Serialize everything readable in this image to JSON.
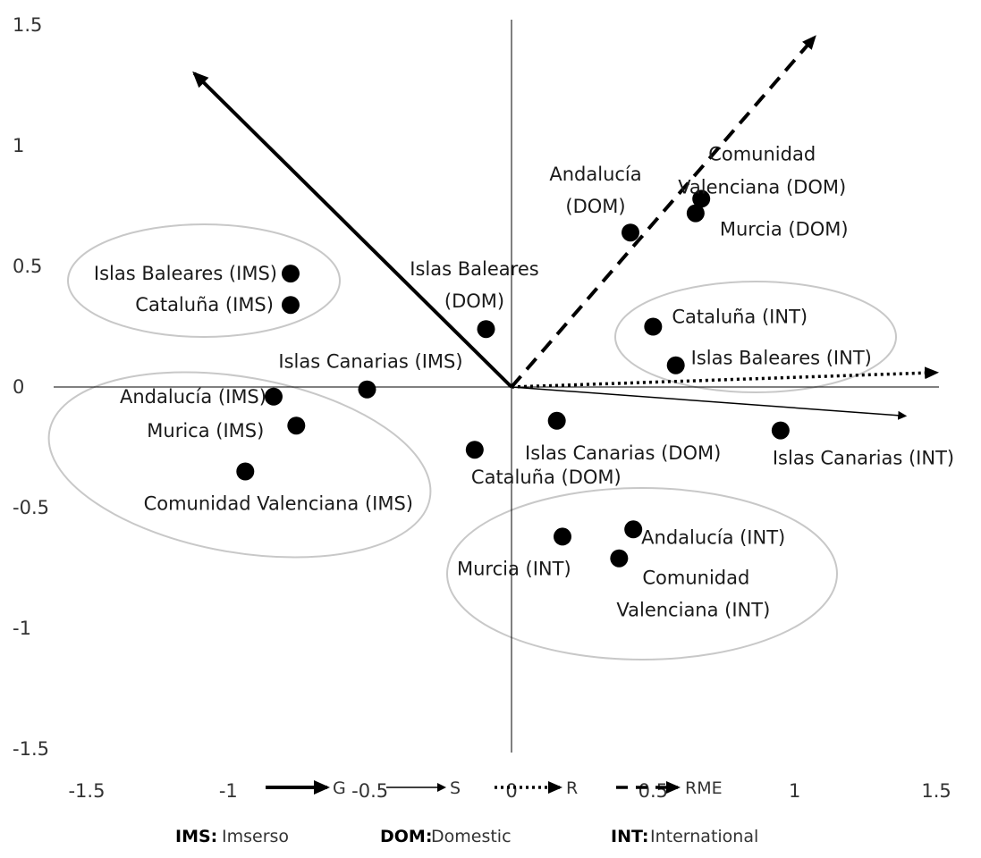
{
  "chart_data": {
    "type": "scatter",
    "xlim": [
      -1.5,
      1.5
    ],
    "ylim": [
      -1.5,
      1.5
    ],
    "x_ticks": [
      "-1.5",
      "-1",
      "-0.5",
      "0",
      "0.5",
      "1",
      "1.5"
    ],
    "y_ticks": [
      "1.5",
      "1",
      "0.5",
      "0",
      "-0.5",
      "-1",
      "-1.5"
    ],
    "grid": false,
    "points": [
      {
        "label": "Islas Baleares (IMS)",
        "x": -0.78,
        "y": 0.47
      },
      {
        "label": "Cataluña (IMS)",
        "x": -0.78,
        "y": 0.34
      },
      {
        "label": "Islas Canarias (IMS)",
        "x": -0.51,
        "y": -0.01
      },
      {
        "label": "Andalucía (IMS)",
        "x": -0.84,
        "y": -0.04
      },
      {
        "label": "Murica (IMS)",
        "x": -0.76,
        "y": -0.16
      },
      {
        "label": "Comunidad Valenciana (IMS)",
        "x": -0.94,
        "y": -0.35
      },
      {
        "label": "Andalucía (DOM)",
        "x": 0.42,
        "y": 0.64
      },
      {
        "label": "Comunidad Valenciana (DOM)",
        "x": 0.67,
        "y": 0.78
      },
      {
        "label": "Murcia (DOM)",
        "x": 0.65,
        "y": 0.72
      },
      {
        "label": "Islas Baleares (DOM)",
        "x": -0.09,
        "y": 0.24
      },
      {
        "label": "Islas Canarias (DOM)",
        "x": 0.16,
        "y": -0.14
      },
      {
        "label": "Cataluña (DOM)",
        "x": -0.13,
        "y": -0.26
      },
      {
        "label": "Cataluña (INT)",
        "x": 0.5,
        "y": 0.25
      },
      {
        "label": "Islas Baleares (INT)",
        "x": 0.58,
        "y": 0.09
      },
      {
        "label": "Islas Canarias (INT)",
        "x": 0.95,
        "y": -0.18
      },
      {
        "label": "Andalucía (INT)",
        "x": 0.43,
        "y": -0.59
      },
      {
        "label": "Murcia (INT)",
        "x": 0.18,
        "y": -0.62
      },
      {
        "label": "Comunidad Valenciana (INT)",
        "x": 0.38,
        "y": -0.71
      }
    ],
    "vectors": [
      {
        "name": "G",
        "style": "solid-thick",
        "x": -1.12,
        "y": 1.3
      },
      {
        "name": "S",
        "style": "solid-thin",
        "x": 1.39,
        "y": -0.12
      },
      {
        "name": "R",
        "style": "dotted",
        "x": 1.5,
        "y": 0.06
      },
      {
        "name": "RME",
        "style": "dashed",
        "x": 1.07,
        "y": 1.45
      }
    ],
    "legend": {
      "placement": "bottom",
      "vectors": [
        "G",
        "S",
        "R",
        "RME"
      ],
      "abbreviations": [
        {
          "key": "IMS:",
          "value": "Imserso"
        },
        {
          "key": "DOM:",
          "value": "Domestic"
        },
        {
          "key": "INT:",
          "value": "International"
        }
      ]
    }
  }
}
